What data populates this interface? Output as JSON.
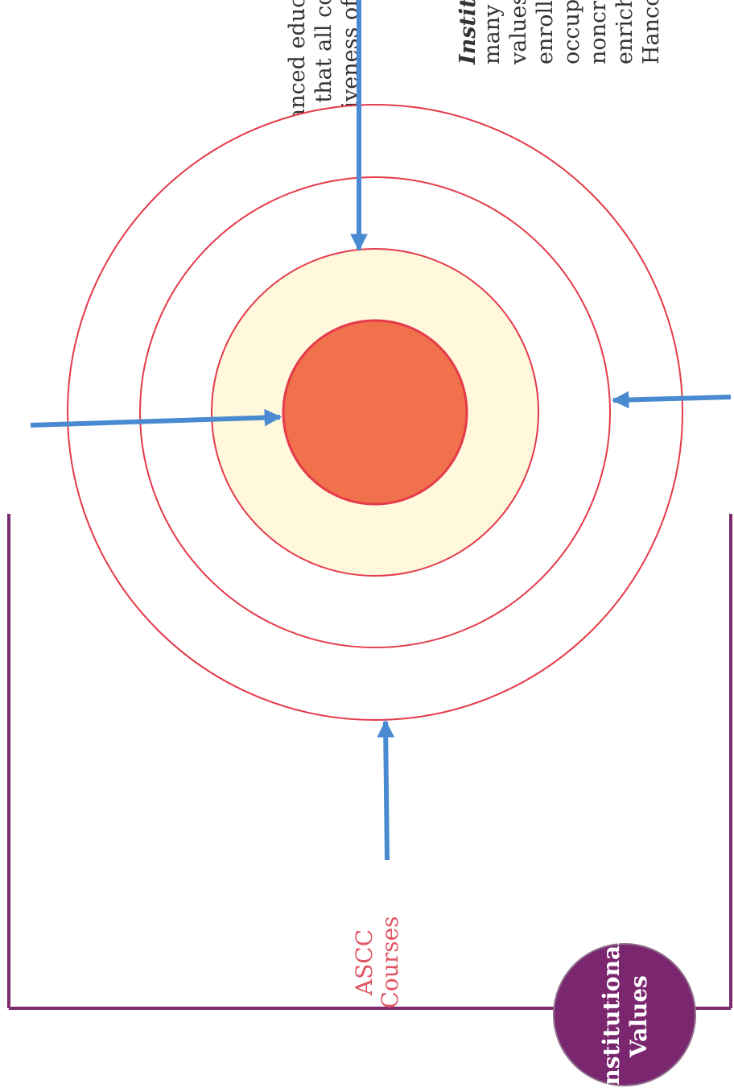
{
  "colors": {
    "ring_stroke": "#e43a4a",
    "inner_fill": "#f2714d",
    "middle_fill": "#fff8dc",
    "arrow": "#4a8ad0",
    "bracket": "#7b2b6e",
    "badge_fill": "#7a2770",
    "badge_text": "#ffffff",
    "ascc_label": "#e05563",
    "body_text": "#333333"
  },
  "top_left_text": {
    "lines": [
      "the distinctiveness of co",
      "guarantees that all colle",
      "broad, balanced educati"
    ]
  },
  "right_text": {
    "heading": "Institu",
    "lines": [
      "many",
      "values",
      "enroll",
      "occupa",
      "noncre",
      "enrich",
      "Hanco"
    ]
  },
  "ascc_label": {
    "line1": "ASCC",
    "line2": "Courses"
  },
  "badge": {
    "line1": "Institutional",
    "line2": "Values"
  }
}
